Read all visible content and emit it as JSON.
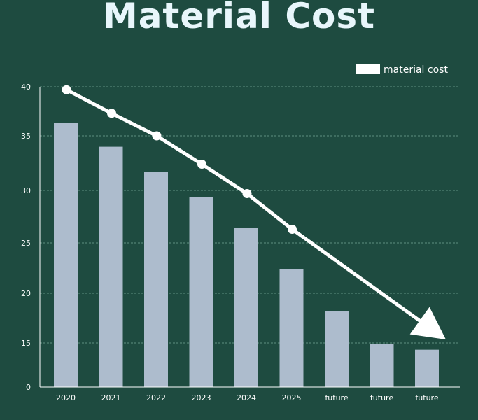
{
  "chart_data": {
    "type": "bar",
    "title": "Material Cost",
    "categories": [
      "2020",
      "2021",
      "2022",
      "2023",
      "2024",
      "2025",
      "future",
      "future",
      "future"
    ],
    "series": [
      {
        "name": "material cost",
        "values": [
          36.3,
          34.0,
          31.7,
          29.4,
          26.4,
          22.4,
          18.2,
          14.7,
          12.7
        ]
      }
    ],
    "yticks": [
      0,
      15,
      20,
      25,
      30,
      35,
      40
    ],
    "trend_markers": [
      39.7,
      37.3,
      35.0,
      32.4,
      29.7,
      26.3
    ],
    "legend": "top-right",
    "grid": true,
    "colors": {
      "background": "#1e4b40",
      "bar": "#adbccd",
      "trend": "#ffffff",
      "grid": "#5f8f80",
      "title": "#e8f6fb"
    }
  }
}
